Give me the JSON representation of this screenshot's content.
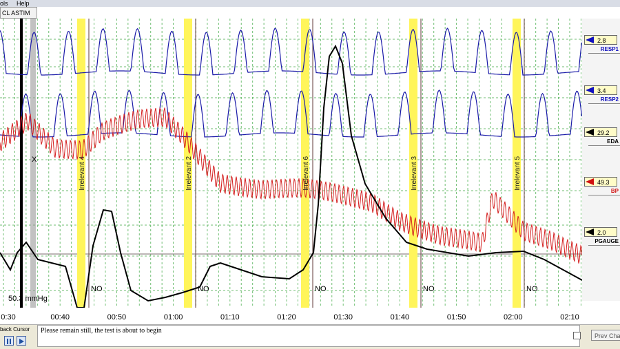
{
  "menu": [
    "ols",
    "Help"
  ],
  "tab_label": "CL ASTIM",
  "channels": [
    {
      "label": "RESP1",
      "value": "2.8",
      "color": "#1010c0"
    },
    {
      "label": "RESP2",
      "value": "3.4",
      "color": "#1010c0"
    },
    {
      "label": "EDA",
      "value": "29.2",
      "color": "#000000"
    },
    {
      "label": "BP",
      "value": "49.3",
      "color": "#d01010"
    },
    {
      "label": "PGAUGE",
      "value": "2.0",
      "color": "#000000"
    }
  ],
  "question_labels": [
    "Irrelevant 4",
    "Irrelevant 2",
    "Irrelevant 6",
    "Irrelevant 3",
    "Irrelevant 5"
  ],
  "answers": [
    "NO",
    "NO",
    "NO",
    "NO",
    "NO"
  ],
  "cuff_pressure": "50.3 mmHg",
  "x_marker": "X",
  "time_ticks": [
    "0:30",
    "00:40",
    "00:50",
    "01:00",
    "01:10",
    "01:20",
    "01:30",
    "01:40",
    "01:50",
    "02:00",
    "02:10"
  ],
  "status": {
    "playback_label": "back Cursor",
    "message": "Please remain still, the test is about to begin",
    "prev_chart": "Prev Cha"
  },
  "colors": {
    "resp": "#1a1aa8",
    "bp": "#d42020",
    "eda": "#000000",
    "highlight": "#fff55a",
    "grid": "#4caf50"
  }
}
